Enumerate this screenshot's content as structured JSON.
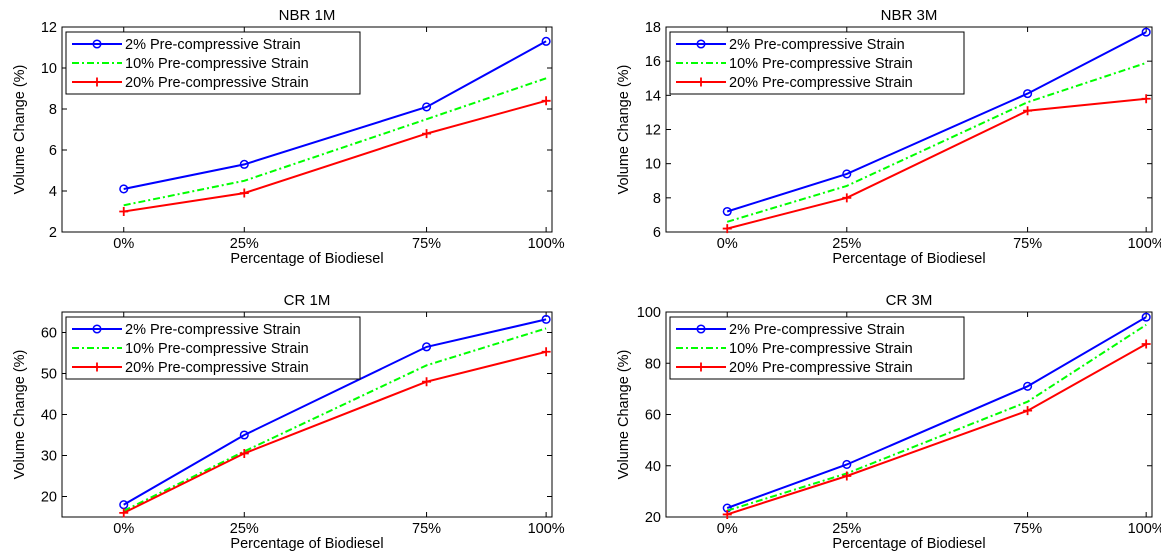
{
  "chart_data": [
    {
      "type": "line",
      "title": "NBR 1M",
      "xlabel": "Percentage of Biodiesel",
      "ylabel": "Volume Change (%)",
      "categories": [
        "0%",
        "25%",
        "75%",
        "100%"
      ],
      "ylim": [
        2,
        12
      ],
      "yticks": [
        2,
        4,
        6,
        8,
        10,
        12
      ],
      "legend_position": "top-left",
      "series": [
        {
          "name": "2% Pre-compressive Strain",
          "values": [
            4.1,
            5.3,
            8.1,
            11.3
          ],
          "color": "#0000ff",
          "dash": "solid",
          "marker": "circle"
        },
        {
          "name": "10% Pre-compressive Strain",
          "values": [
            3.3,
            4.5,
            7.5,
            9.5
          ],
          "color": "#00ff00",
          "dash": "dashdot",
          "marker": "none"
        },
        {
          "name": "20% Pre-compressive Strain",
          "values": [
            3.0,
            3.9,
            6.8,
            8.4
          ],
          "color": "#ff0000",
          "dash": "solid",
          "marker": "plus"
        }
      ]
    },
    {
      "type": "line",
      "title": "NBR 3M",
      "xlabel": "Percentage of Biodiesel",
      "ylabel": "Volume Change (%)",
      "categories": [
        "0%",
        "25%",
        "75%",
        "100%"
      ],
      "ylim": [
        6,
        18
      ],
      "yticks": [
        6,
        8,
        10,
        12,
        14,
        16,
        18
      ],
      "legend_position": "top-left",
      "series": [
        {
          "name": "2% Pre-compressive Strain",
          "values": [
            7.2,
            9.4,
            14.1,
            17.7
          ],
          "color": "#0000ff",
          "dash": "solid",
          "marker": "circle"
        },
        {
          "name": "10% Pre-compressive Strain",
          "values": [
            6.6,
            8.7,
            13.6,
            15.9
          ],
          "color": "#00ff00",
          "dash": "dashdot",
          "marker": "none"
        },
        {
          "name": "20% Pre-compressive Strain",
          "values": [
            6.2,
            8.0,
            13.1,
            13.8
          ],
          "color": "#ff0000",
          "dash": "solid",
          "marker": "plus"
        }
      ]
    },
    {
      "type": "line",
      "title": "CR 1M",
      "xlabel": "Percentage of Biodiesel",
      "ylabel": "Volume Change (%)",
      "categories": [
        "0%",
        "25%",
        "75%",
        "100%"
      ],
      "ylim": [
        15,
        65
      ],
      "yticks": [
        20,
        30,
        40,
        50,
        60
      ],
      "legend_position": "top-left",
      "series": [
        {
          "name": "2% Pre-compressive Strain",
          "values": [
            18,
            35,
            56.5,
            63.2
          ],
          "color": "#0000ff",
          "dash": "solid",
          "marker": "circle"
        },
        {
          "name": "10% Pre-compressive Strain",
          "values": [
            16.5,
            31,
            52,
            61
          ],
          "color": "#00ff00",
          "dash": "dashdot",
          "marker": "none"
        },
        {
          "name": "20% Pre-compressive Strain",
          "values": [
            16,
            30.5,
            48,
            55.3
          ],
          "color": "#ff0000",
          "dash": "solid",
          "marker": "plus"
        }
      ]
    },
    {
      "type": "line",
      "title": "CR 3M",
      "xlabel": "Percentage of Biodiesel",
      "ylabel": "Volume Change (%)",
      "categories": [
        "0%",
        "25%",
        "75%",
        "100%"
      ],
      "ylim": [
        20,
        100
      ],
      "yticks": [
        20,
        40,
        60,
        80,
        100
      ],
      "legend_position": "top-left",
      "series": [
        {
          "name": "2% Pre-compressive Strain",
          "values": [
            23.5,
            40.5,
            71,
            98
          ],
          "color": "#0000ff",
          "dash": "solid",
          "marker": "circle"
        },
        {
          "name": "10% Pre-compressive Strain",
          "values": [
            22.5,
            37,
            65,
            95
          ],
          "color": "#00ff00",
          "dash": "dashdot",
          "marker": "none"
        },
        {
          "name": "20% Pre-compressive Strain",
          "values": [
            21,
            36,
            61.5,
            87.5
          ],
          "color": "#ff0000",
          "dash": "solid",
          "marker": "plus"
        }
      ]
    }
  ]
}
